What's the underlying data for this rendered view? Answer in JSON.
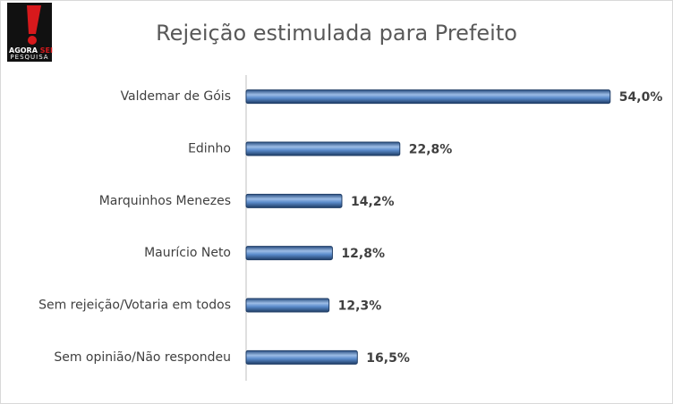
{
  "logo": {
    "line1": "AGORA",
    "line2": "SEI",
    "line3": "PESQUISA"
  },
  "chart_data": {
    "type": "bar",
    "orientation": "horizontal",
    "title": "Rejeição estimulada para Prefeito",
    "categories": [
      "Valdemar de Góis",
      "Edinho",
      "Marquinhos Menezes",
      "Maurício Neto",
      "Sem rejeição/Votaria em todos",
      "Sem opinião/Não respondeu"
    ],
    "values": [
      54.0,
      22.8,
      14.2,
      12.8,
      12.3,
      16.5
    ],
    "value_labels": [
      "54,0%",
      "22,8%",
      "14,2%",
      "12,8%",
      "12,3%",
      "16,5%"
    ],
    "color": "#4f81bd",
    "xlim": [
      0,
      60
    ]
  }
}
